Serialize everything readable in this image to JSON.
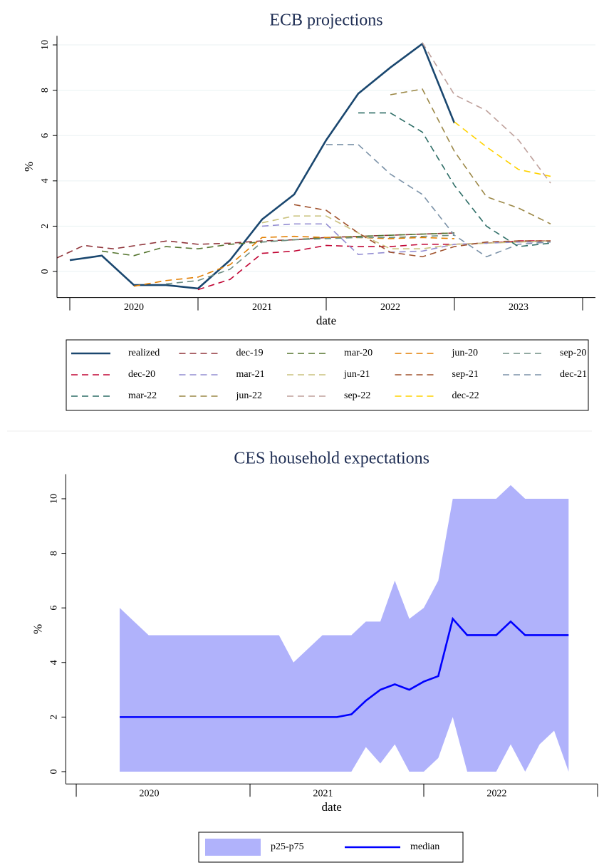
{
  "chart_data": [
    {
      "type": "line",
      "title": "ECB projections",
      "xlabel": "date",
      "ylabel": "%",
      "xlim": [
        2019.9,
        2024.1
      ],
      "ylim": [
        -1.15,
        10.4
      ],
      "yticks": [
        0,
        2,
        4,
        6,
        8,
        10
      ],
      "grid": true,
      "xticks": [
        {
          "value": 2020.5,
          "label": "2020"
        },
        {
          "value": 2021.5,
          "label": "2021"
        },
        {
          "value": 2022.5,
          "label": "2022"
        },
        {
          "value": 2023.5,
          "label": "2023"
        }
      ],
      "xtick_marks": [
        2020,
        2021,
        2022,
        2023,
        2024
      ],
      "legend": "bottom",
      "series": [
        {
          "name": "realized",
          "color": "#1a476f",
          "style": "solid",
          "x": [
            2020,
            2020.25,
            2020.5,
            2020.75,
            2021,
            2021.25,
            2021.5,
            2021.75,
            2022,
            2022.25,
            2022.5,
            2022.75,
            2023
          ],
          "values": [
            0.5,
            0.7,
            -0.6,
            -0.6,
            -0.75,
            0.5,
            2.3,
            3.4,
            5.8,
            7.85,
            9.0,
            10.05,
            6.55
          ]
        },
        {
          "name": "dec-19",
          "color": "#90353b",
          "style": "dashed",
          "x": [
            2019.9,
            2020.11,
            2020.34,
            2020.76,
            2021,
            2021.25,
            2021.5,
            2021.75,
            2022,
            2022.25,
            2022.5,
            2022.75,
            2023
          ],
          "values": [
            0.6,
            1.15,
            1.0,
            1.35,
            1.2,
            1.25,
            1.35,
            1.4,
            1.5,
            1.55,
            1.6,
            1.65,
            1.7
          ]
        },
        {
          "name": "mar-20",
          "color": "#55752f",
          "style": "dashed",
          "x": [
            2020.25,
            2020.5,
            2020.75,
            2021,
            2021.25,
            2021.5,
            2021.75,
            2022,
            2022.25,
            2022.5,
            2022.75,
            2023
          ],
          "values": [
            0.9,
            0.7,
            1.1,
            1.0,
            1.2,
            1.3,
            1.4,
            1.5,
            1.55,
            1.6,
            1.65,
            1.7
          ]
        },
        {
          "name": "jun-20",
          "color": "#e37e00",
          "style": "dashed",
          "x": [
            2020.5,
            2020.75,
            2021,
            2021.25,
            2021.5,
            2021.75,
            2022,
            2022.25,
            2022.5,
            2022.75,
            2023
          ],
          "values": [
            -0.65,
            -0.4,
            -0.25,
            0.3,
            1.5,
            1.55,
            1.5,
            1.5,
            1.45,
            1.5,
            1.45
          ]
        },
        {
          "name": "sep-20",
          "color": "#6e8e84",
          "style": "dashed",
          "x": [
            2020.75,
            2021,
            2021.25,
            2021.5,
            2021.75,
            2022,
            2022.25,
            2022.5,
            2022.75,
            2023
          ],
          "values": [
            -0.55,
            -0.4,
            0.1,
            1.3,
            1.4,
            1.45,
            1.5,
            1.5,
            1.55,
            1.6
          ]
        },
        {
          "name": "dec-20",
          "color": "#c10534",
          "style": "dashed",
          "x": [
            2021,
            2021.25,
            2021.5,
            2021.75,
            2022,
            2022.25,
            2022.5,
            2022.75,
            2023,
            2023.25,
            2023.5,
            2023.75
          ],
          "values": [
            -0.8,
            -0.35,
            0.8,
            0.9,
            1.15,
            1.1,
            1.1,
            1.2,
            1.2,
            1.25,
            1.35,
            1.35
          ]
        },
        {
          "name": "mar-21",
          "color": "#938dd2",
          "style": "dashed",
          "x": [
            2021.5,
            2021.75,
            2022,
            2022.25,
            2022.5,
            2022.75,
            2023,
            2023.25,
            2023.5,
            2023.75
          ],
          "values": [
            2.0,
            2.1,
            2.1,
            0.75,
            0.85,
            0.9,
            1.2,
            1.25,
            1.3,
            1.3
          ]
        },
        {
          "name": "jun-21",
          "color": "#cac27e",
          "style": "dashed",
          "x": [
            2021.5,
            2021.75,
            2022,
            2022.25,
            2022.5,
            2022.75,
            2023,
            2023.25,
            2023.5,
            2023.75
          ],
          "values": [
            2.15,
            2.45,
            2.45,
            1.7,
            1.0,
            1.0,
            1.2,
            1.25,
            1.3,
            1.35
          ]
        },
        {
          "name": "sep-21",
          "color": "#a0522d",
          "style": "dashed",
          "x": [
            2021.75,
            2022,
            2022.25,
            2022.5,
            2022.75,
            2023,
            2023.25,
            2023.5,
            2023.75
          ],
          "values": [
            2.95,
            2.7,
            1.7,
            0.85,
            0.65,
            1.1,
            1.3,
            1.35,
            1.35
          ]
        },
        {
          "name": "dec-21",
          "color": "#7b92a8",
          "style": "dashed",
          "x": [
            2022,
            2022.25,
            2022.5,
            2022.75,
            2023,
            2023.25,
            2023.5,
            2023.75
          ],
          "values": [
            5.6,
            5.6,
            4.3,
            3.4,
            1.6,
            0.65,
            1.2,
            1.3
          ]
        },
        {
          "name": "mar-22",
          "color": "#2d6d66",
          "style": "dashed",
          "x": [
            2022.25,
            2022.5,
            2022.75,
            2023,
            2023.25,
            2023.5,
            2023.75
          ],
          "values": [
            7.0,
            7.0,
            6.15,
            3.8,
            2.0,
            1.1,
            1.25
          ]
        },
        {
          "name": "jun-22",
          "color": "#9c8847",
          "style": "dashed",
          "x": [
            2022.5,
            2022.75,
            2023,
            2023.25,
            2023.5,
            2023.75
          ],
          "values": [
            7.8,
            8.05,
            5.3,
            3.3,
            2.8,
            2.1
          ]
        },
        {
          "name": "sep-22",
          "color": "#bfa19c",
          "style": "dashed",
          "x": [
            2022.75,
            2023,
            2023.25,
            2023.5,
            2023.75
          ],
          "values": [
            10.1,
            7.8,
            7.1,
            5.8,
            3.9
          ]
        },
        {
          "name": "dec-22",
          "color": "#ffd200",
          "style": "dashed",
          "x": [
            2023,
            2023.25,
            2023.5,
            2023.75
          ],
          "values": [
            6.6,
            5.5,
            4.5,
            4.2
          ]
        }
      ]
    },
    {
      "type": "line",
      "title": "CES household expectations",
      "xlabel": "date",
      "ylabel": "%",
      "xlim": [
        2019.94,
        2023.0
      ],
      "ylim": [
        -0.45,
        10.9
      ],
      "yticks": [
        0,
        2,
        4,
        6,
        8,
        10
      ],
      "grid": false,
      "xticks": [
        {
          "value": 2020.42,
          "label": "2020"
        },
        {
          "value": 2021.42,
          "label": "2021"
        },
        {
          "value": 2022.42,
          "label": "2022"
        }
      ],
      "xtick_marks": [
        2020,
        2021,
        2022,
        2023
      ],
      "legend": "bottom",
      "x": [
        2020.25,
        2020.3333,
        2020.4167,
        2020.5,
        2020.5833,
        2020.6667,
        2020.75,
        2020.8333,
        2020.9167,
        2021,
        2021.0833,
        2021.1667,
        2021.25,
        2021.3333,
        2021.4167,
        2021.5,
        2021.5833,
        2021.6667,
        2021.75,
        2021.8333,
        2021.9167,
        2022,
        2022.0833,
        2022.1667,
        2022.25,
        2022.3333,
        2022.4167,
        2022.5,
        2022.5833,
        2022.6667,
        2022.75,
        2022.8333
      ],
      "series": [
        {
          "name": "p25-p75",
          "color": "#b0b2fb",
          "style": "band",
          "upper": [
            6,
            5.5,
            5,
            5,
            5,
            5,
            5,
            5,
            5,
            5,
            5,
            5,
            4,
            4.5,
            5,
            5,
            5,
            5.5,
            5.5,
            7,
            5.6,
            6,
            7,
            10,
            10,
            10,
            10,
            10.5,
            10,
            10,
            10,
            10
          ],
          "lower": [
            0,
            0,
            0,
            0,
            0,
            0,
            0,
            0,
            0,
            0,
            0,
            0,
            0,
            0,
            0,
            0,
            0,
            0.9,
            0.3,
            1.0,
            0,
            0,
            0.5,
            2.0,
            0,
            0,
            0,
            1.0,
            0,
            1.0,
            1.5,
            0
          ]
        },
        {
          "name": "median",
          "color": "#0000ff",
          "style": "solid",
          "values": [
            2,
            2,
            2,
            2,
            2,
            2,
            2,
            2,
            2,
            2,
            2,
            2,
            2,
            2,
            2,
            2,
            2.1,
            2.6,
            3.0,
            3.2,
            3.0,
            3.3,
            3.5,
            5.6,
            5.0,
            5.0,
            5.0,
            5.5,
            5.0,
            5.0,
            5.0,
            5.0
          ]
        }
      ]
    }
  ]
}
